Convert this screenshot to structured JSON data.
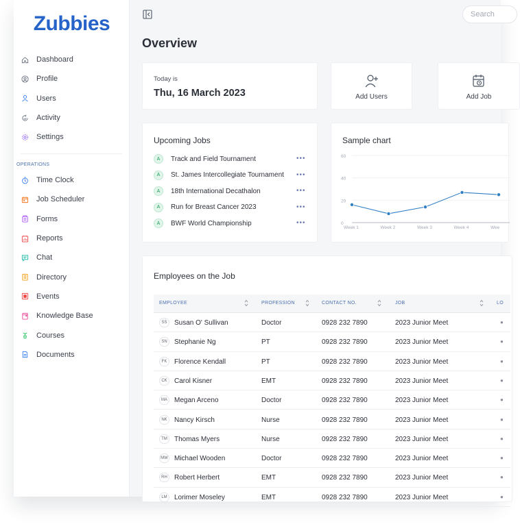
{
  "app": {
    "logo": "Zubbies"
  },
  "sidebar": {
    "items": [
      {
        "label": "Dashboard",
        "icon": "home-icon",
        "color": "#6b7280"
      },
      {
        "label": "Profile",
        "icon": "profile-icon",
        "color": "#6b7280"
      },
      {
        "label": "Users",
        "icon": "user-icon",
        "color": "#3b82f6"
      },
      {
        "label": "Activity",
        "icon": "activity-icon",
        "color": "#6b7280"
      },
      {
        "label": "Settings",
        "icon": "gear-icon",
        "color": "#8b5cf6"
      }
    ],
    "section_label": "OPERATIONS",
    "ops_items": [
      {
        "label": "Time Clock",
        "icon": "clock-icon",
        "color": "#3b82f6"
      },
      {
        "label": "Job Scheduler",
        "icon": "scheduler-icon",
        "color": "#f97316"
      },
      {
        "label": "Forms",
        "icon": "forms-icon",
        "color": "#a855f7"
      },
      {
        "label": "Reports",
        "icon": "reports-icon",
        "color": "#ef4444"
      },
      {
        "label": "Chat",
        "icon": "chat-icon",
        "color": "#14b8a6"
      },
      {
        "label": "Directory",
        "icon": "directory-icon",
        "color": "#f59e0b"
      },
      {
        "label": "Events",
        "icon": "events-icon",
        "color": "#ef4444"
      },
      {
        "label": "Knowledge Base",
        "icon": "knowledge-base-icon",
        "color": "#ec4899"
      },
      {
        "label": "Courses",
        "icon": "courses-icon",
        "color": "#22c55e"
      },
      {
        "label": "Documents",
        "icon": "documents-icon",
        "color": "#3b82f6"
      }
    ]
  },
  "header": {
    "search_placeholder": "Search"
  },
  "page": {
    "title": "Overview"
  },
  "today": {
    "label": "Today is",
    "date": "Thu, 16 March 2023"
  },
  "actions": {
    "add_users": "Add Users",
    "add_job": "Add Job"
  },
  "upcoming": {
    "title": "Upcoming Jobs",
    "badge": "A",
    "more": "•••",
    "jobs": [
      "Track and Field Tournament",
      "St. James Intercollegiate Tournament",
      "18th International Decathalon",
      "Run for Breast Cancer 2023",
      "BWF World Championship"
    ]
  },
  "chart_data": {
    "type": "line",
    "title": "Sample chart",
    "xlabel": "",
    "ylabel": "",
    "ylim": [
      0,
      60
    ],
    "yticks": [
      "0",
      "20",
      "40",
      "60"
    ],
    "categories": [
      "Week 1",
      "Week 2",
      "Week 3",
      "Week 4",
      "Wee"
    ],
    "values": [
      16,
      8,
      14,
      27,
      25
    ],
    "color": "#2f7fc4",
    "grid": true
  },
  "employees": {
    "title": "Employees on the Job",
    "columns": [
      "EMPLOYEE",
      "PROFESSION",
      "CONTACT NO.",
      "JOB",
      "LO"
    ],
    "rows": [
      {
        "initials": "SS",
        "name": "Susan O' Sullivan",
        "profession": "Doctor",
        "contact": "0928 232 7890",
        "job": "2023 Junior Meet"
      },
      {
        "initials": "SN",
        "name": "Stephanie Ng",
        "profession": "PT",
        "contact": "0928 232 7890",
        "job": "2023 Junior Meet"
      },
      {
        "initials": "FK",
        "name": "Florence Kendall",
        "profession": "PT",
        "contact": "0928 232 7890",
        "job": "2023 Junior Meet"
      },
      {
        "initials": "CK",
        "name": "Carol Kisner",
        "profession": "EMT",
        "contact": "0928 232 7890",
        "job": "2023 Junior Meet"
      },
      {
        "initials": "MA",
        "name": "Megan Arceno",
        "profession": "Doctor",
        "contact": "0928 232 7890",
        "job": "2023 Junior Meet"
      },
      {
        "initials": "NK",
        "name": "Nancy Kirsch",
        "profession": "Nurse",
        "contact": "0928 232 7890",
        "job": "2023 Junior Meet"
      },
      {
        "initials": "TM",
        "name": "Thomas Myers",
        "profession": "Nurse",
        "contact": "0928 232 7890",
        "job": "2023 Junior Meet"
      },
      {
        "initials": "MW",
        "name": "Michael Wooden",
        "profession": "Doctor",
        "contact": "0928 232 7890",
        "job": "2023 Junior Meet"
      },
      {
        "initials": "RH",
        "name": "Robert Herbert",
        "profession": "EMT",
        "contact": "0928 232 7890",
        "job": "2023 Junior Meet"
      },
      {
        "initials": "LM",
        "name": "Lorimer Moseley",
        "profession": "EMT",
        "contact": "0928 232 7890",
        "job": "2023 Junior Meet"
      }
    ]
  }
}
